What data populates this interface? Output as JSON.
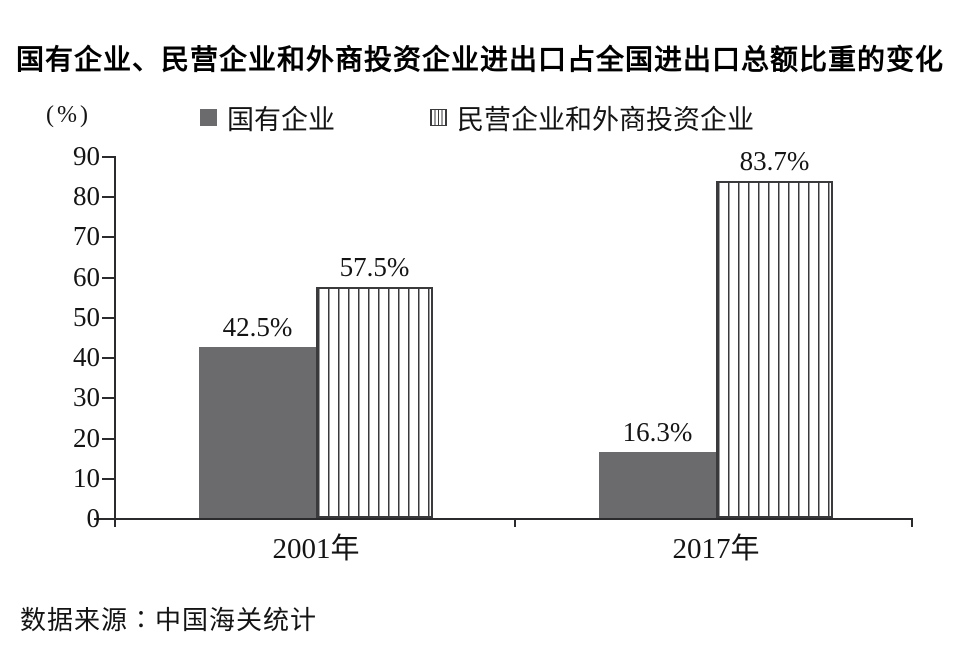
{
  "title": "国有企业、民营企业和外商投资企业进出口占全国进出口总额比重的变化",
  "axis_unit_label": "(%)",
  "legend": {
    "items": [
      {
        "label": "国有企业",
        "swatch": "solid"
      },
      {
        "label": "民营企业和外商投资企业",
        "swatch": "striped"
      }
    ]
  },
  "source_note": "数据来源∶中国海关统计",
  "colors": {
    "solid_bar": "#6b6b6e",
    "stripe_line": "#3a3a3c",
    "axis_line": "#2b2b2d",
    "text": "#141414"
  },
  "chart_data": {
    "type": "bar",
    "categories": [
      "2001年",
      "2017年"
    ],
    "series": [
      {
        "name": "国有企业",
        "style": "solid",
        "values": [
          42.5,
          16.3
        ],
        "value_labels": [
          "42.5%",
          "16.3%"
        ]
      },
      {
        "name": "民营企业和外商投资企业",
        "style": "striped",
        "values": [
          57.5,
          83.7
        ],
        "value_labels": [
          "57.5%",
          "83.7%"
        ]
      }
    ],
    "ylabel": "(%)",
    "ylim": [
      0,
      90
    ],
    "yticks": [
      0,
      10,
      20,
      30,
      40,
      50,
      60,
      70,
      80,
      90
    ],
    "grid": false,
    "legend_position": "top"
  }
}
